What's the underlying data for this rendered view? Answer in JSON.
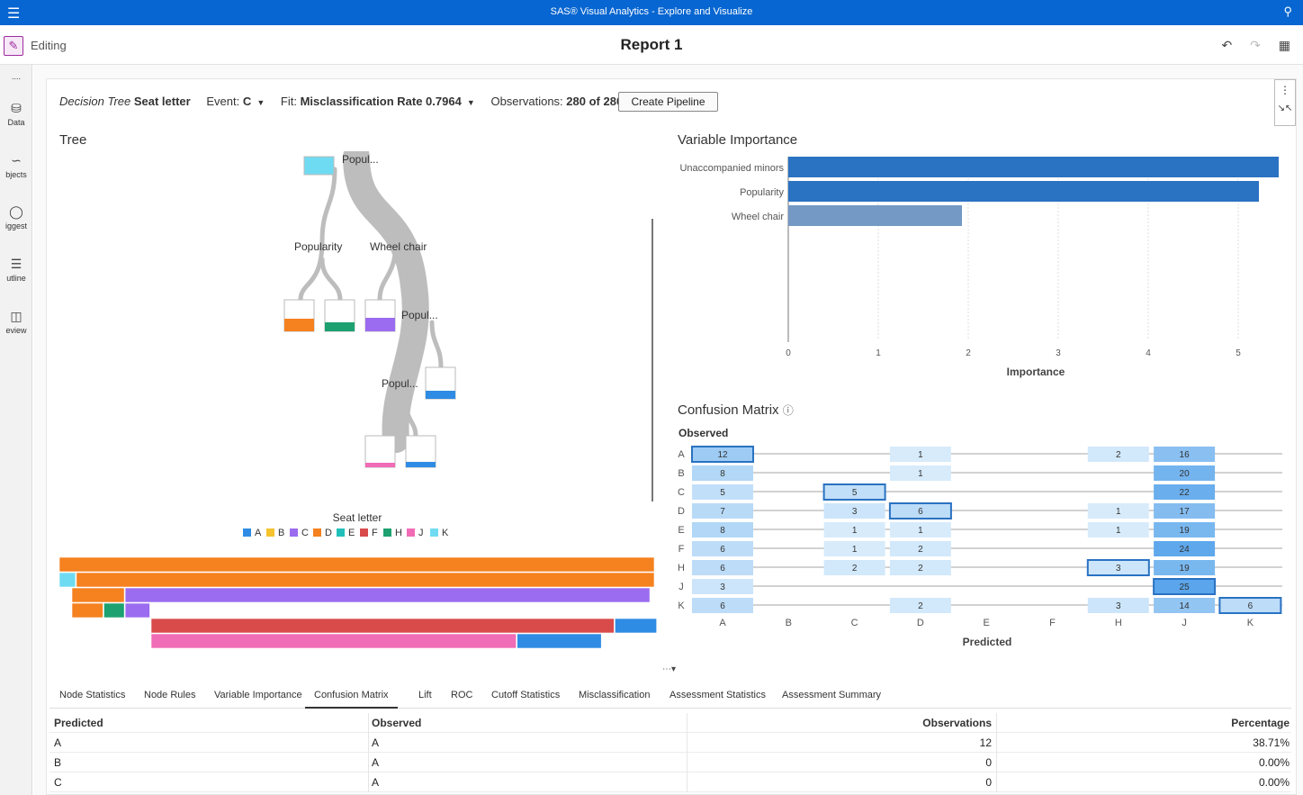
{
  "topbar": {
    "title": "SAS® Visual Analytics - Explore and Visualize",
    "menu_icon": "hamburger-menu-icon",
    "search_icon": "search-icon"
  },
  "editbar": {
    "edit_label": "Editing",
    "report_title": "Report 1"
  },
  "leftnav": {
    "items": [
      {
        "label": "....",
        "icon": "more-icon"
      },
      {
        "label": "Data",
        "icon": "database-icon"
      },
      {
        "label": "bjects",
        "icon": "line-chart-icon"
      },
      {
        "label": "iggest",
        "icon": "lightbulb-icon"
      },
      {
        "label": "utline",
        "icon": "list-icon"
      },
      {
        "label": "eview",
        "icon": "preview-icon"
      }
    ]
  },
  "header": {
    "model": "Decision Tree",
    "target": "Seat letter",
    "event_label": "Event:",
    "event_value": "C",
    "fit_label": "Fit:",
    "fit_value": "Misclassification Rate 0.7964",
    "obs_label": "Observations:",
    "obs_value": "280 of 280",
    "pipeline_button": "Create Pipeline"
  },
  "tree": {
    "title": "Tree",
    "labels": [
      "Popul...",
      "Popularity",
      "Wheel chair",
      "Popul...",
      "Popul..."
    ],
    "legend_title": "Seat letter",
    "legend": [
      {
        "name": "A",
        "color": "#2f8ce4"
      },
      {
        "name": "B",
        "color": "#f5c32c"
      },
      {
        "name": "C",
        "color": "#9b6cf0"
      },
      {
        "name": "D",
        "color": "#f5811f"
      },
      {
        "name": "E",
        "color": "#21bfba"
      },
      {
        "name": "F",
        "color": "#d94b4b"
      },
      {
        "name": "H",
        "color": "#1da170"
      },
      {
        "name": "J",
        "color": "#f06cb6"
      },
      {
        "name": "K",
        "color": "#6fdbf2"
      }
    ]
  },
  "chart_data": [
    {
      "type": "bar",
      "title": "Variable Importance",
      "categories": [
        "Unaccompanied minors",
        "Popularity",
        "Wheel chair"
      ],
      "values": [
        5.45,
        5.23,
        1.93
      ],
      "xlabel": "Importance",
      "ylabel": "",
      "xlim": [
        0,
        5.5
      ],
      "ticks": [
        "0",
        "1",
        "2",
        "3",
        "4",
        "5"
      ],
      "orientation": "horizontal",
      "colors": [
        "#2a72c2",
        "#2a72c2",
        "#7399c4"
      ]
    },
    {
      "type": "heatmap",
      "title": "Confusion Matrix",
      "ylabel": "Observed",
      "xlabel": "Predicted",
      "rows": [
        "A",
        "B",
        "C",
        "D",
        "E",
        "F",
        "H",
        "J",
        "K"
      ],
      "cols": [
        "A",
        "B",
        "C",
        "D",
        "E",
        "F",
        "H",
        "J",
        "K"
      ],
      "cells": [
        {
          "r": "A",
          "c": "A",
          "v": 12,
          "diag": true
        },
        {
          "r": "A",
          "c": "D",
          "v": 1
        },
        {
          "r": "A",
          "c": "H",
          "v": 2
        },
        {
          "r": "A",
          "c": "J",
          "v": 16
        },
        {
          "r": "B",
          "c": "A",
          "v": 8
        },
        {
          "r": "B",
          "c": "D",
          "v": 1
        },
        {
          "r": "B",
          "c": "J",
          "v": 20
        },
        {
          "r": "C",
          "c": "A",
          "v": 5
        },
        {
          "r": "C",
          "c": "C",
          "v": 5,
          "diag": true
        },
        {
          "r": "C",
          "c": "J",
          "v": 22
        },
        {
          "r": "D",
          "c": "A",
          "v": 7
        },
        {
          "r": "D",
          "c": "C",
          "v": 3
        },
        {
          "r": "D",
          "c": "D",
          "v": 6,
          "diag": true
        },
        {
          "r": "D",
          "c": "H",
          "v": 1
        },
        {
          "r": "D",
          "c": "J",
          "v": 17
        },
        {
          "r": "E",
          "c": "A",
          "v": 8
        },
        {
          "r": "E",
          "c": "C",
          "v": 1
        },
        {
          "r": "E",
          "c": "D",
          "v": 1
        },
        {
          "r": "E",
          "c": "H",
          "v": 1
        },
        {
          "r": "E",
          "c": "J",
          "v": 19
        },
        {
          "r": "F",
          "c": "A",
          "v": 6
        },
        {
          "r": "F",
          "c": "C",
          "v": 1
        },
        {
          "r": "F",
          "c": "D",
          "v": 2
        },
        {
          "r": "F",
          "c": "J",
          "v": 24
        },
        {
          "r": "H",
          "c": "A",
          "v": 6
        },
        {
          "r": "H",
          "c": "C",
          "v": 2
        },
        {
          "r": "H",
          "c": "D",
          "v": 2
        },
        {
          "r": "H",
          "c": "H",
          "v": 3,
          "diag": true
        },
        {
          "r": "H",
          "c": "J",
          "v": 19
        },
        {
          "r": "J",
          "c": "A",
          "v": 3
        },
        {
          "r": "J",
          "c": "J",
          "v": 25,
          "diag": true
        },
        {
          "r": "K",
          "c": "A",
          "v": 6
        },
        {
          "r": "K",
          "c": "D",
          "v": 2
        },
        {
          "r": "K",
          "c": "H",
          "v": 3
        },
        {
          "r": "K",
          "c": "J",
          "v": 14
        },
        {
          "r": "K",
          "c": "K",
          "v": 6,
          "diag": true
        }
      ]
    },
    {
      "type": "bar",
      "title": "",
      "orientation": "horizontal-stacked",
      "rows": [
        {
          "level": 0,
          "segments": [
            {
              "class": "D",
              "value": 280
            }
          ]
        },
        {
          "level": 0,
          "segments": [
            {
              "class": "K",
              "value": 8
            },
            {
              "class": "D",
              "value": 272
            }
          ]
        },
        {
          "level": 1,
          "segments": [
            {
              "class": "D",
              "value": 25
            },
            {
              "class": "C",
              "value": 247
            }
          ]
        },
        {
          "level": 1,
          "segments": [
            {
              "class": "D",
              "value": 15
            },
            {
              "class": "H",
              "value": 10
            },
            {
              "class": "C",
              "value": 12
            }
          ]
        },
        {
          "level": 2,
          "segments": [
            {
              "class": "F",
              "value": 218
            },
            {
              "class": "A",
              "value": 20
            }
          ]
        },
        {
          "level": 2,
          "segments": [
            {
              "class": "J",
              "value": 172
            },
            {
              "class": "A",
              "value": 40
            }
          ]
        }
      ]
    }
  ],
  "confusion_info_icon": "info-icon",
  "tabs": [
    {
      "label": "Node Statistics"
    },
    {
      "label": "Node Rules"
    },
    {
      "label": "Variable Importance"
    },
    {
      "label": "Confusion Matrix",
      "active": true
    },
    {
      "label": "Lift"
    },
    {
      "label": "ROC"
    },
    {
      "label": "Cutoff Statistics"
    },
    {
      "label": "Misclassification"
    },
    {
      "label": "Assessment Statistics"
    },
    {
      "label": "Assessment Summary"
    }
  ],
  "table": {
    "columns": [
      "Predicted",
      "Observed",
      "Observations",
      "Percentage"
    ],
    "rows": [
      [
        "A",
        "A",
        "12",
        "38.71%"
      ],
      [
        "B",
        "A",
        "0",
        "0.00%"
      ],
      [
        "C",
        "A",
        "0",
        "0.00%"
      ]
    ]
  }
}
